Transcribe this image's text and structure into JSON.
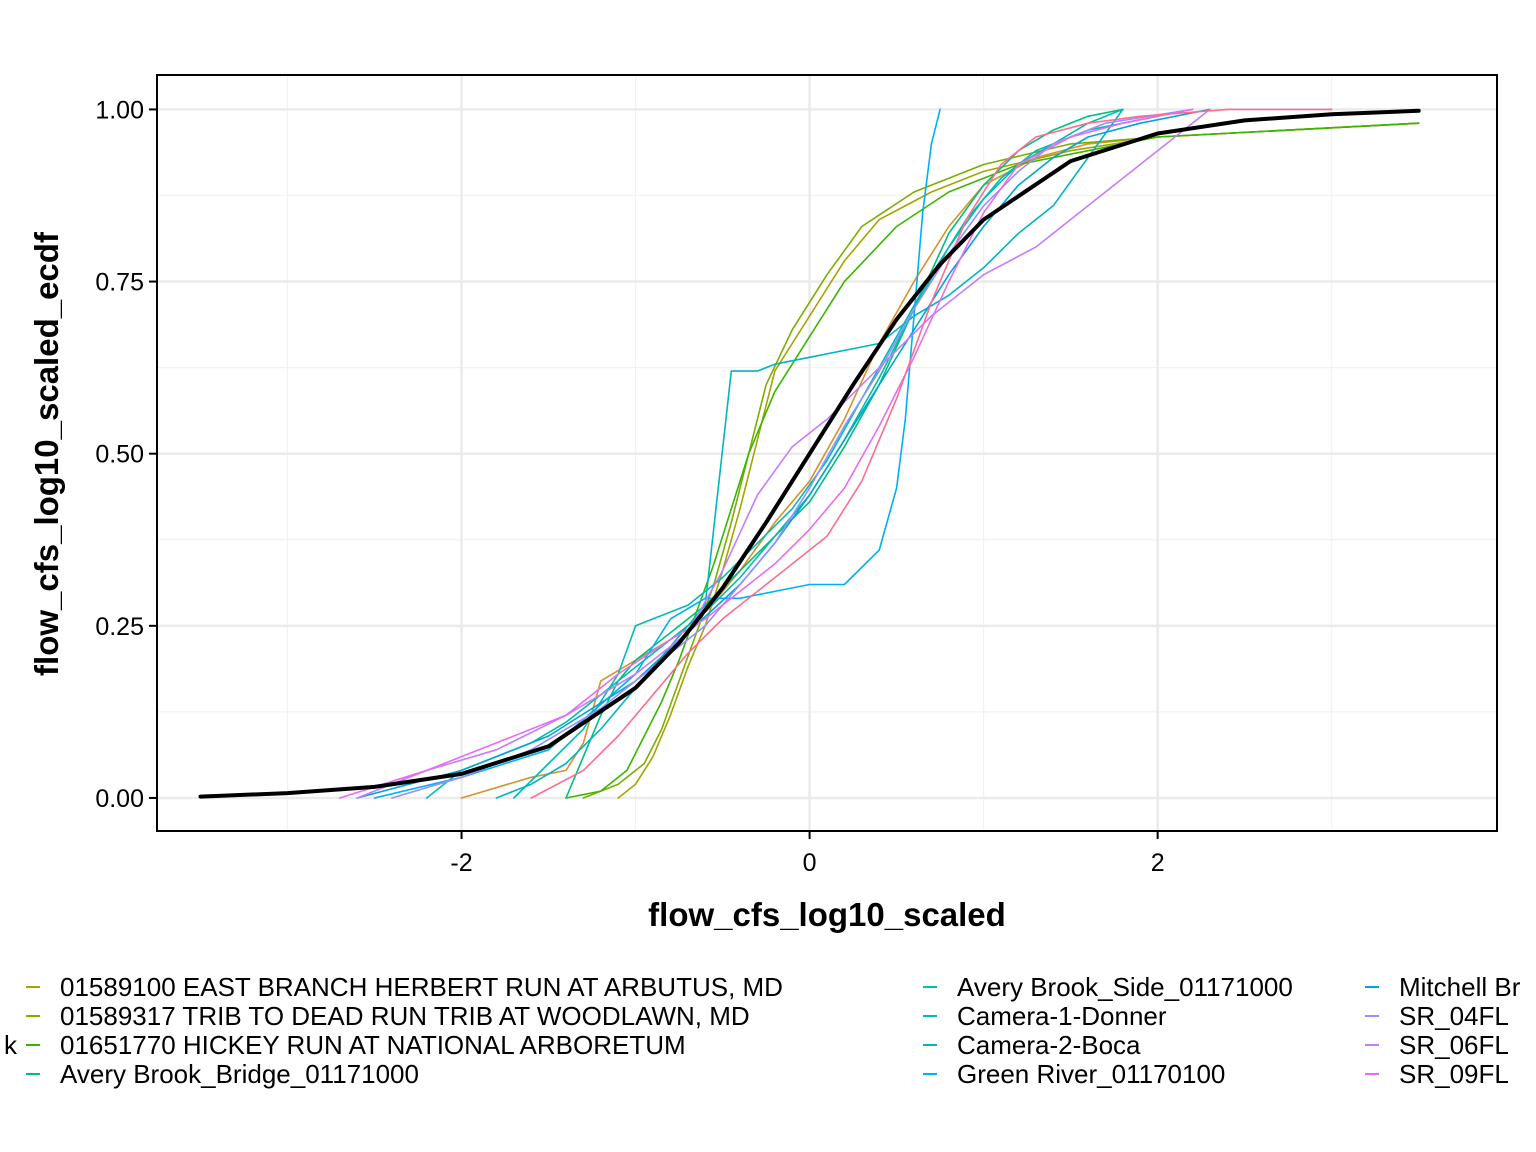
{
  "chart_data": {
    "type": "line",
    "xlabel": "flow_cfs_log10_scaled",
    "ylabel": "flow_cfs_log10_scaled_ecdf",
    "xlim": [
      -3.75,
      3.95
    ],
    "ylim": [
      -0.048,
      1.05
    ],
    "x_ticks": [
      -2,
      0,
      2
    ],
    "x_tick_labels": [
      "-2",
      "0",
      "2"
    ],
    "y_ticks": [
      0,
      0.25,
      0.5,
      0.75,
      1
    ],
    "y_tick_labels": [
      "0.00",
      "0.25",
      "0.50",
      "0.75",
      "1.00"
    ],
    "grid": true,
    "legend_position": "bottom",
    "legend_visible_entries": [
      {
        "label": "k",
        "color": "#F8766D"
      },
      {
        "label": "01589100 EAST BRANCH HERBERT RUN AT ARBUTUS, MD",
        "color": "#A3A500"
      },
      {
        "label": "01589317 TRIB TO DEAD RUN TRIB AT WOODLAWN, MD",
        "color": "#7CAE00"
      },
      {
        "label": "01651770 HICKEY RUN AT NATIONAL ARBORETUM",
        "color": "#39B600"
      },
      {
        "label": "Avery Brook_Bridge_01171000",
        "color": "#00BF7D"
      },
      {
        "label": "Avery Brook_Side_01171000",
        "color": "#00BFA5"
      },
      {
        "label": "Camera-1-Donner",
        "color": "#00BCB6"
      },
      {
        "label": "Camera-2-Boca",
        "color": "#00B5C3"
      },
      {
        "label": "Green River_01170100",
        "color": "#00B0F6"
      },
      {
        "label": "Mitchell Br",
        "color": "#00A5D6"
      },
      {
        "label": "SR_04FL",
        "color": "#9590FF"
      },
      {
        "label": "SR_06FL",
        "color": "#C77CFF"
      },
      {
        "label": "SR_09FL",
        "color": "#E76BF3"
      }
    ],
    "series": [
      {
        "color": "#D8922B",
        "x": [
          -2.0,
          -1.6,
          -1.4,
          -1.3,
          -1.2,
          -1.0,
          -0.8,
          -0.6,
          -0.4,
          -0.2,
          0.0,
          0.2,
          0.4,
          0.6,
          0.8,
          1.0,
          1.3,
          1.6,
          2.0,
          3.5
        ],
        "y": [
          0.0,
          0.03,
          0.04,
          0.08,
          0.17,
          0.2,
          0.23,
          0.27,
          0.33,
          0.4,
          0.46,
          0.55,
          0.66,
          0.75,
          0.83,
          0.89,
          0.93,
          0.95,
          0.96,
          0.98
        ]
      },
      {
        "color": "#A3A500",
        "x": [
          -1.1,
          -1.0,
          -0.9,
          -0.8,
          -0.7,
          -0.6,
          -0.5,
          -0.4,
          -0.3,
          -0.2,
          0.0,
          0.2,
          0.4,
          0.7,
          1.0,
          1.5,
          2.0,
          3.5
        ],
        "y": [
          0.0,
          0.02,
          0.06,
          0.12,
          0.19,
          0.25,
          0.33,
          0.42,
          0.52,
          0.62,
          0.7,
          0.78,
          0.84,
          0.88,
          0.91,
          0.94,
          0.96,
          0.98
        ]
      },
      {
        "color": "#7CAE00",
        "x": [
          -1.3,
          -1.1,
          -0.95,
          -0.85,
          -0.75,
          -0.65,
          -0.55,
          -0.45,
          -0.35,
          -0.25,
          -0.1,
          0.1,
          0.3,
          0.6,
          1.0,
          1.5,
          2.0,
          3.5
        ],
        "y": [
          0.0,
          0.02,
          0.05,
          0.1,
          0.17,
          0.24,
          0.31,
          0.4,
          0.5,
          0.6,
          0.68,
          0.76,
          0.83,
          0.88,
          0.92,
          0.95,
          0.96,
          0.98
        ]
      },
      {
        "color": "#39B600",
        "x": [
          -1.4,
          -1.2,
          -1.05,
          -0.95,
          -0.85,
          -0.75,
          -0.65,
          -0.55,
          -0.45,
          -0.35,
          -0.2,
          0.0,
          0.2,
          0.5,
          0.8,
          1.2,
          1.6,
          2.0,
          3.5
        ],
        "y": [
          0.0,
          0.01,
          0.04,
          0.09,
          0.14,
          0.2,
          0.27,
          0.34,
          0.42,
          0.5,
          0.59,
          0.67,
          0.75,
          0.83,
          0.88,
          0.92,
          0.94,
          0.96,
          0.98
        ]
      },
      {
        "color": "#00BF7D",
        "x": [
          -1.4,
          -1.3,
          -1.2,
          -1.1,
          -1.0,
          -0.8,
          -0.6,
          -0.4,
          -0.2,
          0.0,
          0.2,
          0.4,
          0.6,
          0.8,
          1.0,
          1.2,
          1.4,
          1.6,
          1.8
        ],
        "y": [
          0.0,
          0.06,
          0.12,
          0.17,
          0.2,
          0.24,
          0.28,
          0.33,
          0.38,
          0.43,
          0.51,
          0.6,
          0.71,
          0.82,
          0.89,
          0.94,
          0.97,
          0.99,
          1.0
        ]
      },
      {
        "color": "#00BFA5",
        "x": [
          -2.2,
          -2.0,
          -1.6,
          -1.4,
          -1.2,
          -1.0,
          -0.8,
          -0.6,
          -0.4,
          -0.2,
          0.0,
          0.2,
          0.4,
          0.6,
          0.8,
          1.0,
          1.2,
          1.4,
          1.6,
          1.8
        ],
        "y": [
          0.0,
          0.04,
          0.08,
          0.11,
          0.15,
          0.19,
          0.23,
          0.27,
          0.32,
          0.38,
          0.44,
          0.52,
          0.61,
          0.71,
          0.8,
          0.87,
          0.92,
          0.95,
          0.98,
          1.0
        ]
      },
      {
        "color": "#00BCB6",
        "x": [
          -1.7,
          -1.5,
          -1.3,
          -1.1,
          -1.0,
          -0.9,
          -0.7,
          -0.5,
          -0.3,
          -0.1,
          0.1,
          0.3,
          0.5,
          0.7,
          0.9,
          1.1,
          1.3,
          1.6,
          2.0
        ],
        "y": [
          0.0,
          0.05,
          0.1,
          0.18,
          0.25,
          0.26,
          0.28,
          0.32,
          0.37,
          0.42,
          0.49,
          0.58,
          0.67,
          0.76,
          0.84,
          0.9,
          0.94,
          0.97,
          0.99
        ]
      },
      {
        "color": "#00B5C3",
        "x": [
          -1.8,
          -1.6,
          -1.4,
          -1.2,
          -1.0,
          -0.8,
          -0.6,
          -0.45,
          -0.3,
          -0.2,
          0.0,
          0.2,
          0.4,
          0.6,
          0.8,
          1.0,
          1.2,
          1.4,
          1.6,
          1.8
        ],
        "y": [
          0.0,
          0.02,
          0.05,
          0.1,
          0.16,
          0.22,
          0.28,
          0.62,
          0.62,
          0.63,
          0.64,
          0.65,
          0.66,
          0.7,
          0.73,
          0.77,
          0.82,
          0.86,
          0.93,
          1.0
        ]
      },
      {
        "color": "#00B0F6",
        "x": [
          -2.5,
          -2.0,
          -1.5,
          -1.0,
          -0.8,
          -0.6,
          -0.4,
          -0.2,
          0.0,
          0.2,
          0.4,
          0.5,
          0.55,
          0.6,
          0.65,
          0.7,
          0.75
        ],
        "y": [
          0.0,
          0.03,
          0.07,
          0.18,
          0.26,
          0.29,
          0.29,
          0.3,
          0.31,
          0.31,
          0.36,
          0.45,
          0.55,
          0.7,
          0.85,
          0.95,
          1.0
        ]
      },
      {
        "color": "#00A5D6",
        "x": [
          -2.6,
          -2.0,
          -1.5,
          -1.0,
          -0.7,
          -0.4,
          -0.2,
          0.0,
          0.2,
          0.4,
          0.6,
          0.8,
          1.0,
          1.2,
          1.4,
          1.6,
          1.9,
          2.3
        ],
        "y": [
          0.0,
          0.04,
          0.09,
          0.17,
          0.24,
          0.31,
          0.37,
          0.44,
          0.52,
          0.6,
          0.68,
          0.76,
          0.83,
          0.89,
          0.93,
          0.96,
          0.98,
          1.0
        ]
      },
      {
        "color": "#9590FF",
        "x": [
          -2.4,
          -2.0,
          -1.6,
          -1.2,
          -0.9,
          -0.6,
          -0.4,
          -0.2,
          0.0,
          0.2,
          0.4,
          0.6,
          0.8,
          1.0,
          1.2,
          1.4,
          1.7,
          2.2
        ],
        "y": [
          0.0,
          0.03,
          0.07,
          0.13,
          0.19,
          0.25,
          0.31,
          0.37,
          0.45,
          0.54,
          0.62,
          0.71,
          0.79,
          0.86,
          0.91,
          0.95,
          0.98,
          1.0
        ]
      },
      {
        "color": "#C77CFF",
        "x": [
          -2.6,
          -2.2,
          -1.8,
          -1.4,
          -1.0,
          -0.7,
          -0.5,
          -0.3,
          -0.1,
          0.1,
          0.3,
          0.5,
          0.7,
          1.0,
          1.3,
          1.6,
          1.8,
          2.0,
          2.3
        ],
        "y": [
          0.0,
          0.04,
          0.07,
          0.12,
          0.18,
          0.24,
          0.33,
          0.44,
          0.51,
          0.55,
          0.6,
          0.65,
          0.7,
          0.76,
          0.8,
          0.86,
          0.9,
          0.94,
          1.0
        ]
      },
      {
        "color": "#E76BF3",
        "x": [
          -2.7,
          -2.2,
          -1.8,
          -1.4,
          -1.1,
          -0.8,
          -0.6,
          -0.4,
          -0.2,
          0.0,
          0.2,
          0.4,
          0.6,
          0.8,
          1.0,
          1.2,
          1.5,
          1.8,
          2.2
        ],
        "y": [
          0.0,
          0.04,
          0.08,
          0.12,
          0.18,
          0.23,
          0.26,
          0.3,
          0.34,
          0.39,
          0.45,
          0.54,
          0.64,
          0.75,
          0.85,
          0.92,
          0.96,
          0.98,
          1.0
        ]
      },
      {
        "color": "#FF6C91",
        "x": [
          -1.6,
          -1.3,
          -1.1,
          -0.9,
          -0.7,
          -0.5,
          -0.3,
          -0.1,
          0.1,
          0.3,
          0.5,
          0.7,
          0.9,
          1.1,
          1.3,
          1.6,
          1.9,
          2.4,
          3.0
        ],
        "y": [
          0.0,
          0.04,
          0.09,
          0.15,
          0.21,
          0.26,
          0.3,
          0.34,
          0.38,
          0.46,
          0.58,
          0.72,
          0.84,
          0.92,
          0.96,
          0.98,
          0.99,
          1.0,
          1.0
        ]
      },
      {
        "color": "#000000",
        "width": 4,
        "x": [
          -3.5,
          -3.0,
          -2.5,
          -2.0,
          -1.5,
          -1.0,
          -0.75,
          -0.5,
          -0.25,
          0.0,
          0.25,
          0.5,
          0.75,
          1.0,
          1.5,
          2.0,
          2.5,
          3.0,
          3.5
        ],
        "y": [
          0.002,
          0.007,
          0.016,
          0.035,
          0.075,
          0.16,
          0.225,
          0.305,
          0.4,
          0.5,
          0.6,
          0.695,
          0.775,
          0.84,
          0.925,
          0.965,
          0.984,
          0.993,
          0.998
        ]
      }
    ]
  }
}
